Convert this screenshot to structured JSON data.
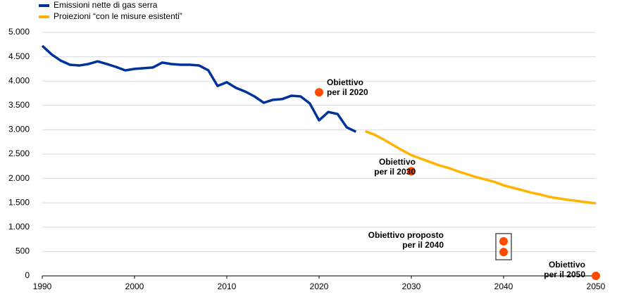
{
  "chart_data": {
    "type": "line",
    "series": [
      {
        "name": "Emissioni nette di gas serra",
        "color": "#003299",
        "x": [
          1990,
          1991,
          1992,
          1993,
          1994,
          1995,
          1996,
          1997,
          1998,
          1999,
          2000,
          2001,
          2002,
          2003,
          2004,
          2005,
          2006,
          2007,
          2008,
          2009,
          2010,
          2011,
          2012,
          2013,
          2014,
          2015,
          2016,
          2017,
          2018,
          2019,
          2020,
          2021,
          2022,
          2023,
          2024
        ],
        "values": [
          4725,
          4550,
          4420,
          4335,
          4320,
          4350,
          4405,
          4350,
          4290,
          4220,
          4250,
          4265,
          4280,
          4380,
          4350,
          4335,
          4335,
          4320,
          4220,
          3900,
          3975,
          3860,
          3785,
          3685,
          3555,
          3615,
          3630,
          3700,
          3685,
          3540,
          3195,
          3365,
          3325,
          3050,
          2960
        ]
      },
      {
        "name": "Proiezioni “con le misure esistenti”",
        "color": "#ffb400",
        "x": [
          2025,
          2026,
          2027,
          2028,
          2029,
          2030,
          2031,
          2032,
          2033,
          2034,
          2035,
          2036,
          2037,
          2038,
          2039,
          2040,
          2041,
          2042,
          2043,
          2044,
          2045,
          2046,
          2047,
          2048,
          2049,
          2050
        ],
        "values": [
          2970,
          2900,
          2800,
          2690,
          2580,
          2480,
          2410,
          2340,
          2270,
          2220,
          2150,
          2090,
          2030,
          1980,
          1930,
          1860,
          1810,
          1760,
          1710,
          1670,
          1620,
          1590,
          1560,
          1540,
          1510,
          1490
        ]
      }
    ],
    "targets": {
      "color": "#ff4b00",
      "x": [
        2020,
        2030,
        2040,
        2040,
        2050
      ],
      "values": [
        3770,
        2150,
        710,
        490,
        0
      ]
    },
    "annotations": [
      {
        "lines": [
          "Obiettivo",
          "per il 2020"
        ]
      },
      {
        "lines": [
          "Obiettivo",
          "per il 2030"
        ]
      },
      {
        "lines": [
          "Obiettivo proposto",
          "per il 2040"
        ]
      },
      {
        "lines": [
          "Obiettivo",
          "per il 2050"
        ]
      }
    ],
    "xlim": [
      1990,
      2050
    ],
    "xticks": [
      1990,
      2000,
      2010,
      2020,
      2030,
      2040,
      2050
    ],
    "ylim": [
      0,
      5000
    ],
    "yticks": [
      0,
      500,
      {
        "value": 1000,
        "label": "1.000"
      },
      {
        "value": 1500,
        "label": "1.500"
      },
      {
        "value": 2000,
        "label": "2.000"
      },
      {
        "value": 2500,
        "label": "2.500"
      },
      {
        "value": 3000,
        "label": "3.000"
      },
      {
        "value": 3500,
        "label": "3.500"
      },
      {
        "value": 4000,
        "label": "4.000"
      },
      {
        "value": 4500,
        "label": "4.500"
      },
      {
        "value": 5000,
        "label": "5.000"
      }
    ],
    "grid": true
  }
}
